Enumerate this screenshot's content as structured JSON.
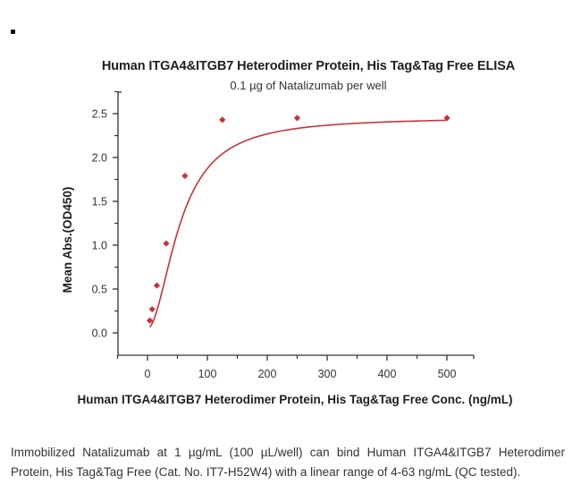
{
  "page": {
    "bullet": "•"
  },
  "chart_data": {
    "type": "scatter",
    "title": "Human ITGA4&ITGB7 Heterodimer Protein, His Tag&Tag Free ELISA",
    "subtitle": "0.1 µg of Natalizumab per well",
    "xlabel": "Human ITGA4&ITGB7 Heterodimer Protein, His Tag&Tag Free Conc. (ng/mL)",
    "ylabel": "Mean Abs.(OD450)",
    "xlim": [
      -50,
      550
    ],
    "ylim": [
      -0.25,
      2.75
    ],
    "xticks": [
      0,
      100,
      200,
      300,
      400,
      500
    ],
    "yticks": [
      0.0,
      0.5,
      1.0,
      1.5,
      2.0,
      2.5
    ],
    "xtick_labels": [
      "0",
      "100",
      "200",
      "300",
      "400",
      "500"
    ],
    "ytick_labels": [
      "0.0",
      "0.5",
      "1.0",
      "1.5",
      "2.0",
      "2.5"
    ],
    "grid": false,
    "legend": null,
    "series": [
      {
        "name": "Mean Abs.(OD450)",
        "color": "#c8323a",
        "marker": "diamond",
        "fit": "4-parameter logistic curve",
        "x": [
          3.9,
          7.8,
          15.6,
          31.25,
          62.5,
          125,
          250,
          500
        ],
        "y": [
          0.14,
          0.27,
          0.54,
          1.02,
          1.79,
          2.43,
          2.45,
          2.45
        ]
      }
    ]
  },
  "caption": {
    "text": "Immobilized Natalizumab at 1 µg/mL (100 µL/well) can bind Human ITGA4&ITGB7 Heterodimer Protein, His Tag&Tag Free (Cat. No. IT7-H52W4) with a linear range of 4-63 ng/mL (QC tested)."
  }
}
